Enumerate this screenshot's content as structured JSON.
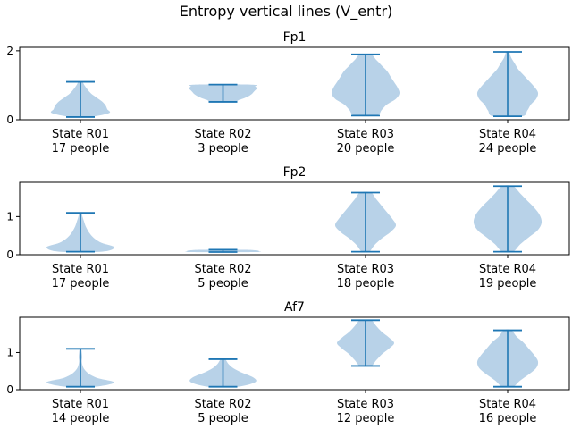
{
  "figure": {
    "suptitle": "Entropy vertical lines (V_entr)"
  },
  "style": {
    "violin_fill": "#b8d2e8",
    "line_color": "#1f77b4",
    "axis_color": "#000000"
  },
  "chart_data": [
    {
      "type": "violin",
      "title": "Fp1",
      "ylim": [
        0,
        2.1
      ],
      "yticks": [
        0,
        2
      ],
      "categories": [
        "State R01\n17 people",
        "State R02\n3 people",
        "State R03\n20 people",
        "State R04\n24 people"
      ],
      "violins": [
        {
          "min": 0.08,
          "max": 1.1,
          "width": [
            0.25,
            0.8,
            0.75,
            0.7,
            0.6,
            0.45,
            0.3,
            0.2,
            0.12,
            0.05
          ]
        },
        {
          "min": 0.52,
          "max": 1.02,
          "width": [
            0.3,
            0.45,
            0.6,
            0.72,
            0.8,
            0.85,
            0.9,
            0.95,
            0.9,
            0.8
          ]
        },
        {
          "min": 0.12,
          "max": 1.9,
          "width": [
            0.3,
            0.45,
            0.6,
            0.85,
            0.95,
            0.9,
            0.8,
            0.7,
            0.6,
            0.45,
            0.3,
            0.15
          ]
        },
        {
          "min": 0.1,
          "max": 1.97,
          "width": [
            0.4,
            0.55,
            0.65,
            0.8,
            0.85,
            0.75,
            0.6,
            0.45,
            0.3,
            0.2,
            0.1,
            0.04
          ]
        }
      ]
    },
    {
      "type": "violin",
      "title": "Fp2",
      "ylim": [
        0,
        1.9
      ],
      "yticks": [
        0,
        1
      ],
      "categories": [
        "State R01\n17 people",
        "State R02\n5 people",
        "State R03\n18 people",
        "State R04\n19 people"
      ],
      "violins": [
        {
          "min": 0.08,
          "max": 1.1,
          "width": [
            0.6,
            0.95,
            0.6,
            0.4,
            0.28,
            0.2,
            0.14,
            0.1,
            0.06,
            0.03
          ]
        },
        {
          "min": 0.07,
          "max": 0.13,
          "width": [
            0.9,
            1.0,
            0.95,
            0.6
          ]
        },
        {
          "min": 0.08,
          "max": 1.63,
          "width": [
            0.1,
            0.25,
            0.45,
            0.7,
            0.85,
            0.75,
            0.6,
            0.45,
            0.3,
            0.15
          ]
        },
        {
          "min": 0.08,
          "max": 1.8,
          "width": [
            0.15,
            0.35,
            0.6,
            0.85,
            0.95,
            0.9,
            0.75,
            0.55,
            0.35,
            0.15
          ]
        }
      ]
    },
    {
      "type": "violin",
      "title": "Af7",
      "ylim": [
        0,
        1.95
      ],
      "yticks": [
        0,
        1
      ],
      "categories": [
        "State R01\n14 people",
        "State R02\n5 people",
        "State R03\n12 people",
        "State R04\n16 people"
      ],
      "violins": [
        {
          "min": 0.08,
          "max": 1.1,
          "width": [
            0.4,
            0.95,
            0.5,
            0.25,
            0.12,
            0.06,
            0.04,
            0.05,
            0.04,
            0.02
          ]
        },
        {
          "min": 0.08,
          "max": 0.82,
          "width": [
            0.4,
            0.9,
            0.85,
            0.55,
            0.3,
            0.15,
            0.06
          ]
        },
        {
          "min": 0.64,
          "max": 1.87,
          "width": [
            0.15,
            0.3,
            0.45,
            0.65,
            0.8,
            0.65,
            0.45,
            0.3,
            0.15
          ]
        },
        {
          "min": 0.08,
          "max": 1.6,
          "width": [
            0.15,
            0.35,
            0.6,
            0.8,
            0.85,
            0.75,
            0.6,
            0.45,
            0.25,
            0.1
          ]
        }
      ]
    }
  ]
}
